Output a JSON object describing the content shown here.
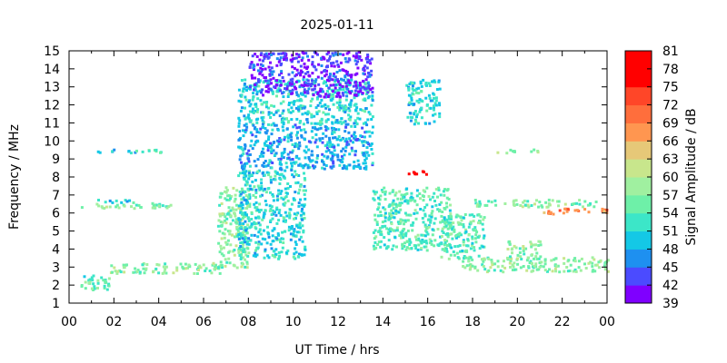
{
  "chart_data": {
    "type": "heatmap",
    "title": "2025-01-11",
    "xlabel": "UT Time / hrs",
    "ylabel": "Frequency / MHz",
    "colorbar_label": "Signal Amplitude / dB",
    "xlim": [
      0,
      24
    ],
    "ylim": [
      1,
      15
    ],
    "x_tick_labels": [
      "00",
      "02",
      "04",
      "06",
      "08",
      "10",
      "12",
      "14",
      "16",
      "18",
      "20",
      "22",
      "00"
    ],
    "y_tick_labels": [
      "1",
      "2",
      "3",
      "4",
      "5",
      "6",
      "7",
      "8",
      "9",
      "10",
      "11",
      "12",
      "13",
      "14",
      "15"
    ],
    "colorbar_ticks": [
      "39",
      "42",
      "45",
      "48",
      "51",
      "54",
      "57",
      "60",
      "63",
      "66",
      "69",
      "72",
      "75",
      "78",
      "81"
    ],
    "colorbar_colors": [
      "#7f00ff",
      "#4b4bff",
      "#1e90f0",
      "#14c8e6",
      "#3ce6c8",
      "#6ef0a8",
      "#a0f0a0",
      "#c8e68c",
      "#e6c878",
      "#ff9650",
      "#ff6e3c",
      "#ff4628",
      "#ff0000",
      "#ff0000"
    ],
    "grid": false,
    "description_series": [
      {
        "name": "clusters",
        "values": [
          {
            "x": [
              0.5,
              4.5
            ],
            "y": [
              6.3,
              6.6
            ],
            "level": 57
          },
          {
            "x": [
              0.5,
              2.0
            ],
            "y": [
              1.8,
              2.6
            ],
            "level": 54
          },
          {
            "x": [
              1.8,
              6.8
            ],
            "y": [
              2.7,
              3.3
            ],
            "level": 57
          },
          {
            "x": [
              1.2,
              3.0
            ],
            "y": [
              6.6,
              6.8
            ],
            "level": 51
          },
          {
            "x": [
              1.2,
              3.0
            ],
            "y": [
              9.4,
              9.6
            ],
            "level": 51
          },
          {
            "x": [
              3.2,
              4.2
            ],
            "y": [
              9.4,
              9.6
            ],
            "level": 54
          },
          {
            "x": [
              6.6,
              8.0
            ],
            "y": [
              3.0,
              7.5
            ],
            "level": 57
          },
          {
            "x": [
              7.5,
              13.5
            ],
            "y": [
              11.0,
              13.5
            ],
            "level": 51
          },
          {
            "x": [
              8.0,
              13.5
            ],
            "y": [
              12.5,
              15.0
            ],
            "level": 42
          },
          {
            "x": [
              7.5,
              13.5
            ],
            "y": [
              8.5,
              11.0
            ],
            "level": 48
          },
          {
            "x": [
              7.5,
              10.5
            ],
            "y": [
              3.5,
              8.5
            ],
            "level": 51
          },
          {
            "x": [
              13.5,
              17.0
            ],
            "y": [
              4.0,
              7.5
            ],
            "level": 54
          },
          {
            "x": [
              15.0,
              16.5
            ],
            "y": [
              11.0,
              13.5
            ],
            "level": 51
          },
          {
            "x": [
              16.5,
              18.5
            ],
            "y": [
              3.5,
              6.0
            ],
            "level": 54
          },
          {
            "x": [
              17.5,
              24.0
            ],
            "y": [
              2.8,
              3.6
            ],
            "level": 57
          },
          {
            "x": [
              19.5,
              21.0
            ],
            "y": [
              3.5,
              4.5
            ],
            "level": 57
          },
          {
            "x": [
              19.0,
              21.0
            ],
            "y": [
              9.4,
              9.6
            ],
            "level": 57
          },
          {
            "x": [
              18.0,
              23.5
            ],
            "y": [
              6.4,
              6.8
            ],
            "level": 57
          },
          {
            "x": [
              21.0,
              24.0
            ],
            "y": [
              6.0,
              6.3
            ],
            "level": 69
          },
          {
            "x": [
              15.0,
              16.0
            ],
            "y": [
              8.2,
              8.4
            ],
            "level": 81
          }
        ]
      }
    ]
  }
}
